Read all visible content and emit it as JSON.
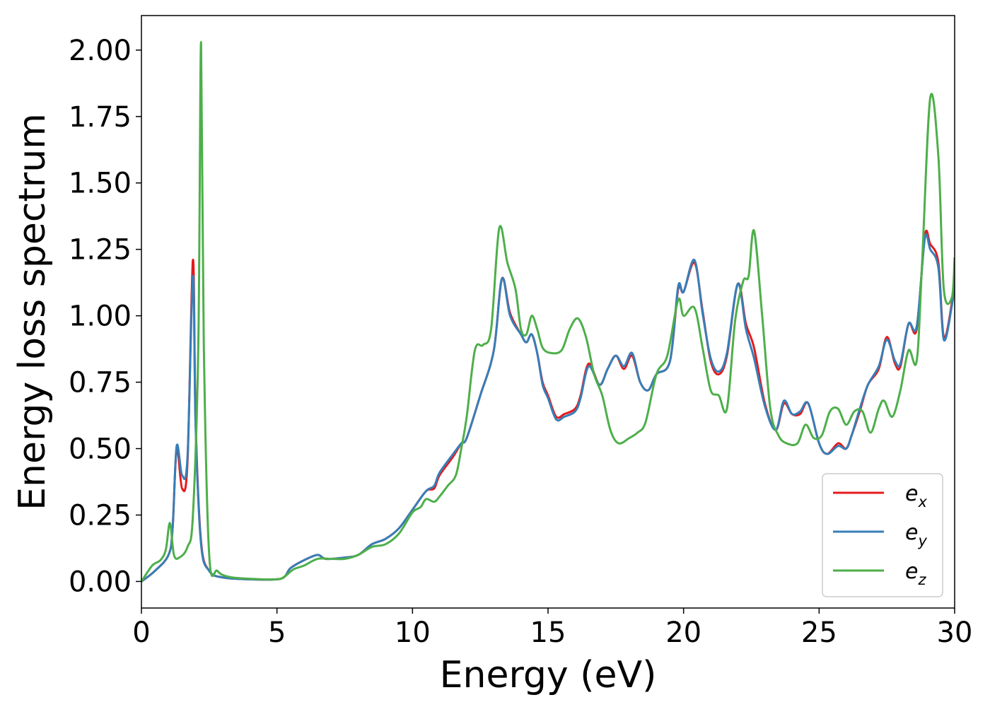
{
  "chart_data": {
    "type": "line",
    "xlabel": "Energy (eV)",
    "ylabel": "Energy loss spectrum",
    "xlim": [
      0,
      30
    ],
    "ylim": [
      -0.1,
      2.13
    ],
    "xticks": [
      0,
      5,
      10,
      15,
      20,
      25,
      30
    ],
    "xtick_labels": [
      "0",
      "5",
      "10",
      "15",
      "20",
      "25",
      "30"
    ],
    "yticks": [
      0.0,
      0.25,
      0.5,
      0.75,
      1.0,
      1.25,
      1.5,
      1.75,
      2.0
    ],
    "ytick_labels": [
      "0.00",
      "0.25",
      "0.50",
      "0.75",
      "1.00",
      "1.25",
      "1.50",
      "1.75",
      "2.00"
    ],
    "grid": false,
    "legend_position": "bottom-right",
    "series": [
      {
        "name": "e",
        "subscript": "x",
        "color": "#e41a1c",
        "points": [
          [
            0,
            0
          ],
          [
            0.5,
            0.04
          ],
          [
            1.0,
            0.1
          ],
          [
            1.15,
            0.2
          ],
          [
            1.3,
            0.5
          ],
          [
            1.5,
            0.35
          ],
          [
            1.7,
            0.45
          ],
          [
            1.9,
            1.21
          ],
          [
            2.0,
            0.6
          ],
          [
            2.2,
            0.15
          ],
          [
            2.5,
            0.04
          ],
          [
            3,
            0.015
          ],
          [
            4,
            0.008
          ],
          [
            5,
            0.008
          ],
          [
            5.3,
            0.02
          ],
          [
            5.5,
            0.05
          ],
          [
            6,
            0.08
          ],
          [
            6.5,
            0.1
          ],
          [
            6.8,
            0.085
          ],
          [
            7.5,
            0.09
          ],
          [
            8,
            0.1
          ],
          [
            8.5,
            0.14
          ],
          [
            9,
            0.16
          ],
          [
            9.5,
            0.2
          ],
          [
            10,
            0.27
          ],
          [
            10.5,
            0.34
          ],
          [
            10.8,
            0.35
          ],
          [
            11,
            0.4
          ],
          [
            11.5,
            0.47
          ],
          [
            11.8,
            0.52
          ],
          [
            12,
            0.54
          ],
          [
            12.5,
            0.7
          ],
          [
            13,
            0.87
          ],
          [
            13.3,
            1.14
          ],
          [
            13.6,
            1.01
          ],
          [
            14,
            0.93
          ],
          [
            14.2,
            0.9
          ],
          [
            14.4,
            0.93
          ],
          [
            14.6,
            0.86
          ],
          [
            14.8,
            0.75
          ],
          [
            15,
            0.7
          ],
          [
            15.3,
            0.62
          ],
          [
            15.6,
            0.63
          ],
          [
            16,
            0.65
          ],
          [
            16.2,
            0.7
          ],
          [
            16.5,
            0.82
          ],
          [
            16.9,
            0.74
          ],
          [
            17.2,
            0.8
          ],
          [
            17.5,
            0.85
          ],
          [
            17.8,
            0.8
          ],
          [
            18.1,
            0.85
          ],
          [
            18.4,
            0.75
          ],
          [
            18.7,
            0.72
          ],
          [
            19,
            0.78
          ],
          [
            19.5,
            0.83
          ],
          [
            19.8,
            1.1
          ],
          [
            20,
            1.09
          ],
          [
            20.4,
            1.2
          ],
          [
            20.7,
            1.02
          ],
          [
            21,
            0.83
          ],
          [
            21.3,
            0.78
          ],
          [
            21.6,
            0.85
          ],
          [
            22,
            1.12
          ],
          [
            22.3,
            0.97
          ],
          [
            22.6,
            0.88
          ],
          [
            23,
            0.67
          ],
          [
            23.4,
            0.57
          ],
          [
            23.7,
            0.67
          ],
          [
            24,
            0.63
          ],
          [
            24.3,
            0.63
          ],
          [
            24.6,
            0.67
          ],
          [
            25,
            0.52
          ],
          [
            25.3,
            0.48
          ],
          [
            25.7,
            0.52
          ],
          [
            26,
            0.5
          ],
          [
            26.2,
            0.55
          ],
          [
            26.5,
            0.64
          ],
          [
            26.8,
            0.74
          ],
          [
            27.2,
            0.8
          ],
          [
            27.5,
            0.92
          ],
          [
            27.8,
            0.82
          ],
          [
            28,
            0.81
          ],
          [
            28.3,
            0.97
          ],
          [
            28.6,
            0.95
          ],
          [
            28.9,
            1.3
          ],
          [
            29.1,
            1.27
          ],
          [
            29.4,
            1.2
          ],
          [
            29.6,
            0.92
          ],
          [
            29.9,
            1.05
          ],
          [
            30,
            1.15
          ]
        ]
      },
      {
        "name": "e",
        "subscript": "y",
        "color": "#377eb8",
        "points": [
          [
            0,
            0
          ],
          [
            0.5,
            0.04
          ],
          [
            1.0,
            0.1
          ],
          [
            1.15,
            0.2
          ],
          [
            1.3,
            0.51
          ],
          [
            1.5,
            0.4
          ],
          [
            1.7,
            0.47
          ],
          [
            1.9,
            1.15
          ],
          [
            2.0,
            0.58
          ],
          [
            2.2,
            0.14
          ],
          [
            2.5,
            0.04
          ],
          [
            3,
            0.015
          ],
          [
            4,
            0.008
          ],
          [
            5,
            0.008
          ],
          [
            5.3,
            0.02
          ],
          [
            5.5,
            0.05
          ],
          [
            6,
            0.08
          ],
          [
            6.5,
            0.1
          ],
          [
            6.8,
            0.085
          ],
          [
            7.5,
            0.09
          ],
          [
            8,
            0.1
          ],
          [
            8.5,
            0.14
          ],
          [
            9,
            0.16
          ],
          [
            9.5,
            0.2
          ],
          [
            10,
            0.27
          ],
          [
            10.5,
            0.34
          ],
          [
            10.8,
            0.36
          ],
          [
            11,
            0.41
          ],
          [
            11.5,
            0.48
          ],
          [
            11.8,
            0.52
          ],
          [
            12,
            0.54
          ],
          [
            12.5,
            0.7
          ],
          [
            13,
            0.87
          ],
          [
            13.3,
            1.14
          ],
          [
            13.6,
            1.0
          ],
          [
            14,
            0.93
          ],
          [
            14.2,
            0.9
          ],
          [
            14.4,
            0.93
          ],
          [
            14.6,
            0.86
          ],
          [
            14.8,
            0.74
          ],
          [
            15,
            0.69
          ],
          [
            15.3,
            0.61
          ],
          [
            15.6,
            0.62
          ],
          [
            16,
            0.64
          ],
          [
            16.2,
            0.69
          ],
          [
            16.5,
            0.81
          ],
          [
            16.9,
            0.74
          ],
          [
            17.2,
            0.8
          ],
          [
            17.5,
            0.85
          ],
          [
            17.8,
            0.81
          ],
          [
            18.1,
            0.86
          ],
          [
            18.4,
            0.75
          ],
          [
            18.7,
            0.72
          ],
          [
            19,
            0.78
          ],
          [
            19.5,
            0.83
          ],
          [
            19.8,
            1.11
          ],
          [
            20,
            1.09
          ],
          [
            20.4,
            1.21
          ],
          [
            20.7,
            1.01
          ],
          [
            21,
            0.84
          ],
          [
            21.3,
            0.79
          ],
          [
            21.6,
            0.86
          ],
          [
            22,
            1.12
          ],
          [
            22.3,
            0.95
          ],
          [
            22.6,
            0.84
          ],
          [
            23,
            0.66
          ],
          [
            23.4,
            0.57
          ],
          [
            23.7,
            0.68
          ],
          [
            24,
            0.63
          ],
          [
            24.3,
            0.64
          ],
          [
            24.6,
            0.67
          ],
          [
            25,
            0.52
          ],
          [
            25.3,
            0.48
          ],
          [
            25.7,
            0.51
          ],
          [
            26,
            0.5
          ],
          [
            26.2,
            0.55
          ],
          [
            26.5,
            0.65
          ],
          [
            26.8,
            0.74
          ],
          [
            27.2,
            0.81
          ],
          [
            27.5,
            0.91
          ],
          [
            27.8,
            0.83
          ],
          [
            28,
            0.82
          ],
          [
            28.3,
            0.97
          ],
          [
            28.6,
            0.96
          ],
          [
            28.9,
            1.29
          ],
          [
            29.1,
            1.25
          ],
          [
            29.4,
            1.18
          ],
          [
            29.6,
            0.91
          ],
          [
            29.9,
            1.04
          ],
          [
            30,
            1.13
          ]
        ]
      },
      {
        "name": "e",
        "subscript": "z",
        "color": "#4daf4a",
        "points": [
          [
            0,
            0
          ],
          [
            0.4,
            0.06
          ],
          [
            0.7,
            0.08
          ],
          [
            0.9,
            0.12
          ],
          [
            1.05,
            0.22
          ],
          [
            1.2,
            0.1
          ],
          [
            1.4,
            0.09
          ],
          [
            1.7,
            0.13
          ],
          [
            1.9,
            0.25
          ],
          [
            2.1,
            0.9
          ],
          [
            2.2,
            2.03
          ],
          [
            2.3,
            0.9
          ],
          [
            2.5,
            0.1
          ],
          [
            2.8,
            0.04
          ],
          [
            3.2,
            0.018
          ],
          [
            4,
            0.01
          ],
          [
            5,
            0.008
          ],
          [
            5.3,
            0.02
          ],
          [
            5.6,
            0.045
          ],
          [
            6,
            0.06
          ],
          [
            6.5,
            0.085
          ],
          [
            7,
            0.085
          ],
          [
            7.5,
            0.085
          ],
          [
            8,
            0.1
          ],
          [
            8.5,
            0.13
          ],
          [
            9,
            0.14
          ],
          [
            9.5,
            0.18
          ],
          [
            10,
            0.26
          ],
          [
            10.3,
            0.28
          ],
          [
            10.5,
            0.31
          ],
          [
            10.8,
            0.3
          ],
          [
            11,
            0.32
          ],
          [
            11.3,
            0.36
          ],
          [
            11.6,
            0.4
          ],
          [
            11.8,
            0.5
          ],
          [
            12,
            0.62
          ],
          [
            12.3,
            0.87
          ],
          [
            12.6,
            0.89
          ],
          [
            12.9,
            0.95
          ],
          [
            13.2,
            1.33
          ],
          [
            13.5,
            1.2
          ],
          [
            13.8,
            1.1
          ],
          [
            14.0,
            0.95
          ],
          [
            14.2,
            0.93
          ],
          [
            14.4,
            1.0
          ],
          [
            14.6,
            0.95
          ],
          [
            14.8,
            0.88
          ],
          [
            15.1,
            0.86
          ],
          [
            15.5,
            0.87
          ],
          [
            15.8,
            0.95
          ],
          [
            16.1,
            0.99
          ],
          [
            16.4,
            0.92
          ],
          [
            16.7,
            0.78
          ],
          [
            17.0,
            0.7
          ],
          [
            17.3,
            0.57
          ],
          [
            17.6,
            0.52
          ],
          [
            18.0,
            0.54
          ],
          [
            18.3,
            0.56
          ],
          [
            18.6,
            0.6
          ],
          [
            19,
            0.78
          ],
          [
            19.4,
            0.85
          ],
          [
            19.8,
            1.06
          ],
          [
            20.0,
            1.0
          ],
          [
            20.4,
            1.03
          ],
          [
            20.7,
            0.88
          ],
          [
            21,
            0.72
          ],
          [
            21.3,
            0.7
          ],
          [
            21.6,
            0.65
          ],
          [
            21.9,
            0.98
          ],
          [
            22.2,
            1.13
          ],
          [
            22.4,
            1.15
          ],
          [
            22.6,
            1.32
          ],
          [
            22.9,
            1.0
          ],
          [
            23.2,
            0.65
          ],
          [
            23.5,
            0.55
          ],
          [
            23.8,
            0.52
          ],
          [
            24.2,
            0.52
          ],
          [
            24.5,
            0.59
          ],
          [
            24.8,
            0.54
          ],
          [
            25.1,
            0.55
          ],
          [
            25.4,
            0.64
          ],
          [
            25.7,
            0.65
          ],
          [
            26.0,
            0.59
          ],
          [
            26.3,
            0.64
          ],
          [
            26.6,
            0.64
          ],
          [
            26.9,
            0.56
          ],
          [
            27.2,
            0.65
          ],
          [
            27.4,
            0.68
          ],
          [
            27.7,
            0.62
          ],
          [
            28,
            0.72
          ],
          [
            28.3,
            0.87
          ],
          [
            28.6,
            0.83
          ],
          [
            28.8,
            1.2
          ],
          [
            29.1,
            1.82
          ],
          [
            29.4,
            1.6
          ],
          [
            29.6,
            1.1
          ],
          [
            29.9,
            1.07
          ],
          [
            30,
            1.22
          ]
        ]
      }
    ]
  }
}
